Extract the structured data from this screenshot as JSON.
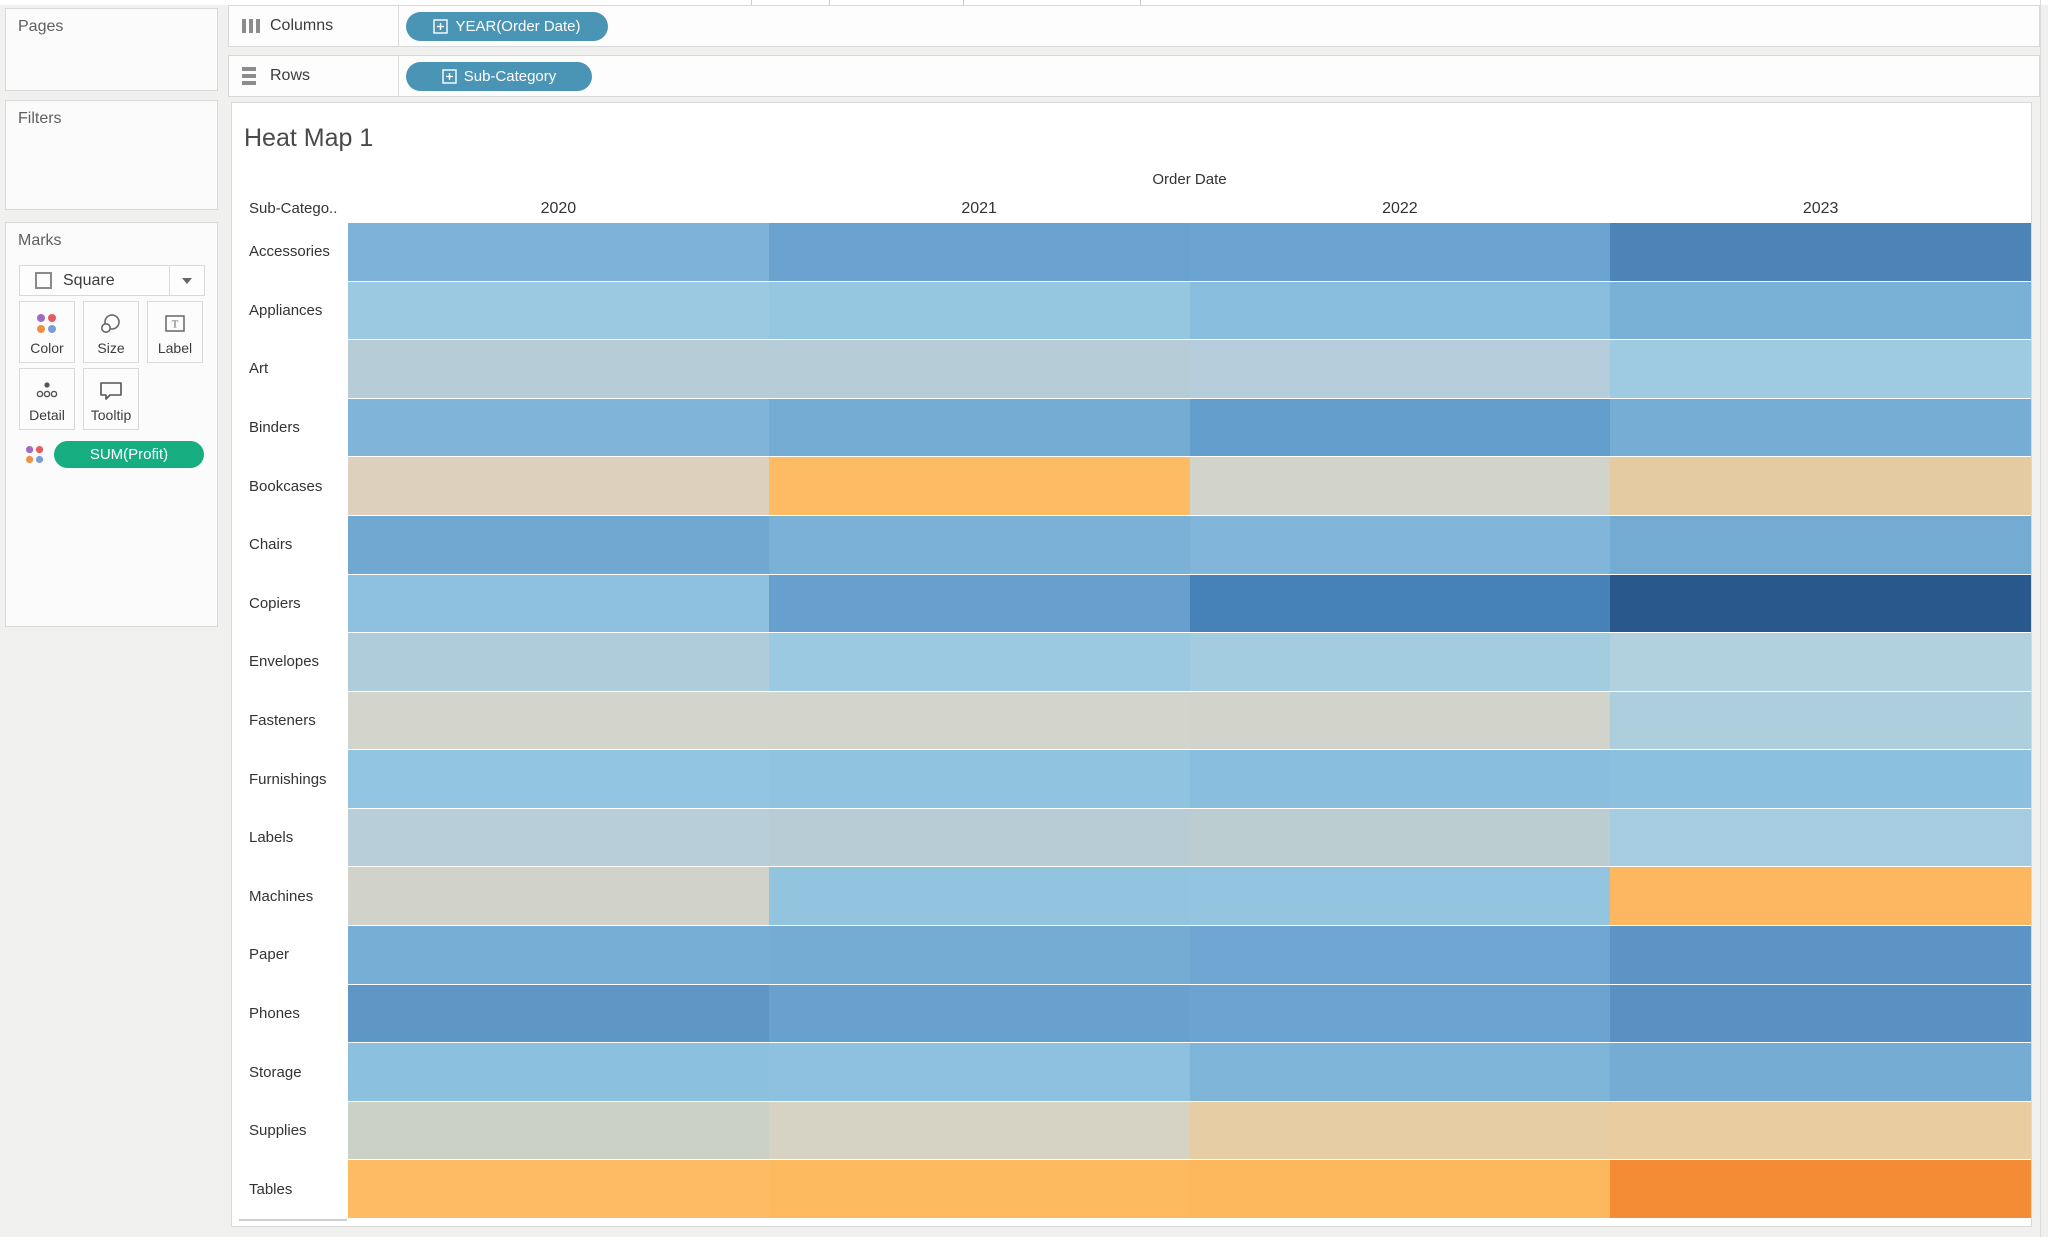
{
  "left_panel": {
    "pages_label": "Pages",
    "filters_label": "Filters",
    "marks": {
      "title": "Marks",
      "mark_type": "Square",
      "buttons": [
        "Color",
        "Size",
        "Label",
        "Detail",
        "Tooltip"
      ],
      "encoding_pill": "SUM(Profit)"
    }
  },
  "shelves": {
    "columns_label": "Columns",
    "rows_label": "Rows",
    "columns_pill": "YEAR(Order Date)",
    "rows_pill": "Sub-Category"
  },
  "sheet": {
    "title": "Heat Map 1"
  },
  "colors": {
    "dimension_pill": "#4a94b6",
    "measure_pill": "#16ad80",
    "sheet_background": "#ffffff",
    "panel_background": "#f0f0ef"
  },
  "chart_data": {
    "type": "heatmap",
    "title": "Heat Map 1",
    "x_axis_title": "Order Date",
    "row_header": "Sub-Catego..",
    "columns": [
      "2020",
      "2021",
      "2022",
      "2023"
    ],
    "rows": [
      "Accessories",
      "Appliances",
      "Art",
      "Binders",
      "Bookcases",
      "Chairs",
      "Copiers",
      "Envelopes",
      "Fasteners",
      "Furnishings",
      "Labels",
      "Machines",
      "Paper",
      "Phones",
      "Storage",
      "Supplies",
      "Tables"
    ],
    "color_legend": "color encodes SUM(Profit): dark blue = high positive, gray = near zero, orange = negative",
    "cell_colors": [
      [
        "#7eb2d8",
        "#6aa2cf",
        "#6ba4d0",
        "#4c84b8"
      ],
      [
        "#9bc9e2",
        "#96c7e1",
        "#89bddd",
        "#79b0d6"
      ],
      [
        "#b6cdd8",
        "#b6cdd8",
        "#b6cedb",
        "#9fcbe2"
      ],
      [
        "#80b4d9",
        "#73abd3",
        "#639ecd",
        "#76add4"
      ],
      [
        "#ddd1bd",
        "#fdbb63",
        "#d2d3ca",
        "#e5cba2"
      ],
      [
        "#70a8d2",
        "#7cb1d7",
        "#81b5da",
        "#73abd3"
      ],
      [
        "#8ec1e0",
        "#67a0ce",
        "#4681b7",
        "#29588c"
      ],
      [
        "#aeccda",
        "#9bc9e2",
        "#a3cce1",
        "#b1d1de"
      ],
      [
        "#d3d4cb",
        "#d3d4cb",
        "#d2d4cb",
        "#accedd"
      ],
      [
        "#92c5e1",
        "#8fc3e0",
        "#8abede",
        "#8cc0df"
      ],
      [
        "#b8ced8",
        "#b7ccd5",
        "#bccdd2",
        "#a5cce0"
      ],
      [
        "#d1d3ca",
        "#92c4e0",
        "#93c5e1",
        "#fdb760"
      ],
      [
        "#77aed5",
        "#74acd4",
        "#6fa7d2",
        "#5d94c6"
      ],
      [
        "#5e97c6",
        "#68a1ce",
        "#6ba4d0",
        "#5991c3"
      ],
      [
        "#8cc0df",
        "#8ec1e0",
        "#7fb4d9",
        "#74acd4"
      ],
      [
        "#ccd1c8",
        "#d6d2c4",
        "#e7cda4",
        "#e9cda1"
      ],
      [
        "#fdbb63",
        "#fdb95e",
        "#fdb85e",
        "#f38c34"
      ]
    ]
  }
}
